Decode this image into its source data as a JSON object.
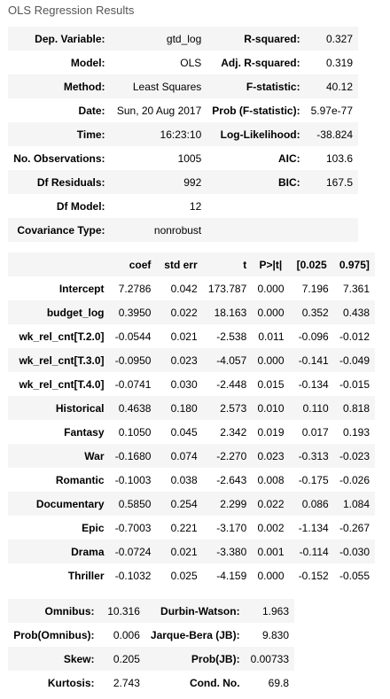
{
  "title": "OLS Regression Results",
  "model_info": [
    {
      "l1": "Dep. Variable:",
      "v1": "gtd_log",
      "l2": "R-squared:",
      "v2": "0.327"
    },
    {
      "l1": "Model:",
      "v1": "OLS",
      "l2": "Adj. R-squared:",
      "v2": "0.319"
    },
    {
      "l1": "Method:",
      "v1": "Least Squares",
      "l2": "F-statistic:",
      "v2": "40.12"
    },
    {
      "l1": "Date:",
      "v1": "Sun, 20 Aug 2017",
      "l2": "Prob (F-statistic):",
      "v2": "5.97e-77"
    },
    {
      "l1": "Time:",
      "v1": "16:23:10",
      "l2": "Log-Likelihood:",
      "v2": "-38.824"
    },
    {
      "l1": "No. Observations:",
      "v1": "1005",
      "l2": "AIC:",
      "v2": "103.6"
    },
    {
      "l1": "Df Residuals:",
      "v1": "992",
      "l2": "BIC:",
      "v2": "167.5"
    },
    {
      "l1": "Df Model:",
      "v1": "12",
      "l2": "",
      "v2": ""
    },
    {
      "l1": "Covariance Type:",
      "v1": "nonrobust",
      "l2": "",
      "v2": ""
    }
  ],
  "coef_headers": [
    "",
    "coef",
    "std err",
    "t",
    "P>|t|",
    "[0.025",
    "0.975]"
  ],
  "coefficients": [
    {
      "name": "Intercept",
      "coef": "7.2786",
      "se": "0.042",
      "t": "173.787",
      "p": "0.000",
      "lo": "7.196",
      "hi": "7.361"
    },
    {
      "name": "budget_log",
      "coef": "0.3950",
      "se": "0.022",
      "t": "18.163",
      "p": "0.000",
      "lo": "0.352",
      "hi": "0.438"
    },
    {
      "name": "wk_rel_cnt[T.2.0]",
      "coef": "-0.0544",
      "se": "0.021",
      "t": "-2.538",
      "p": "0.011",
      "lo": "-0.096",
      "hi": "-0.012"
    },
    {
      "name": "wk_rel_cnt[T.3.0]",
      "coef": "-0.0950",
      "se": "0.023",
      "t": "-4.057",
      "p": "0.000",
      "lo": "-0.141",
      "hi": "-0.049"
    },
    {
      "name": "wk_rel_cnt[T.4.0]",
      "coef": "-0.0741",
      "se": "0.030",
      "t": "-2.448",
      "p": "0.015",
      "lo": "-0.134",
      "hi": "-0.015"
    },
    {
      "name": "Historical",
      "coef": "0.4638",
      "se": "0.180",
      "t": "2.573",
      "p": "0.010",
      "lo": "0.110",
      "hi": "0.818"
    },
    {
      "name": "Fantasy",
      "coef": "0.1050",
      "se": "0.045",
      "t": "2.342",
      "p": "0.019",
      "lo": "0.017",
      "hi": "0.193"
    },
    {
      "name": "War",
      "coef": "-0.1680",
      "se": "0.074",
      "t": "-2.270",
      "p": "0.023",
      "lo": "-0.313",
      "hi": "-0.023"
    },
    {
      "name": "Romantic",
      "coef": "-0.1003",
      "se": "0.038",
      "t": "-2.643",
      "p": "0.008",
      "lo": "-0.175",
      "hi": "-0.026"
    },
    {
      "name": "Documentary",
      "coef": "0.5850",
      "se": "0.254",
      "t": "2.299",
      "p": "0.022",
      "lo": "0.086",
      "hi": "1.084"
    },
    {
      "name": "Epic",
      "coef": "-0.7003",
      "se": "0.221",
      "t": "-3.170",
      "p": "0.002",
      "lo": "-1.134",
      "hi": "-0.267"
    },
    {
      "name": "Drama",
      "coef": "-0.0724",
      "se": "0.021",
      "t": "-3.380",
      "p": "0.001",
      "lo": "-0.114",
      "hi": "-0.030"
    },
    {
      "name": "Thriller",
      "coef": "-0.1032",
      "se": "0.025",
      "t": "-4.159",
      "p": "0.000",
      "lo": "-0.152",
      "hi": "-0.055"
    }
  ],
  "diagnostics": [
    {
      "l1": "Omnibus:",
      "v1": "10.316",
      "l2": "Durbin-Watson:",
      "v2": "1.963"
    },
    {
      "l1": "Prob(Omnibus):",
      "v1": "0.006",
      "l2": "Jarque-Bera (JB):",
      "v2": "9.830"
    },
    {
      "l1": "Skew:",
      "v1": "0.205",
      "l2": "Prob(JB):",
      "v2": "0.00733"
    },
    {
      "l1": "Kurtosis:",
      "v1": "2.743",
      "l2": "Cond. No.",
      "v2": "69.8"
    }
  ],
  "colors": {
    "row_shade": "#f5f5f5",
    "caption": "#555555"
  }
}
